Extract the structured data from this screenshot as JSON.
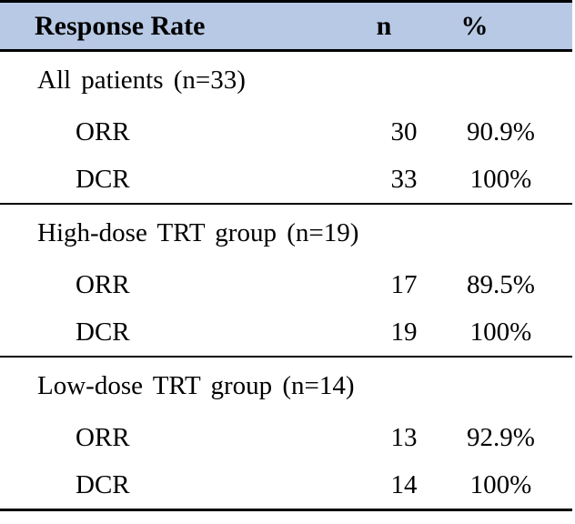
{
  "table": {
    "header": {
      "response_rate": "Response Rate",
      "n": "n",
      "pct": "%"
    },
    "colors": {
      "header_bg": "#b7c9e4",
      "border": "#000000",
      "text": "#000000"
    },
    "sections": [
      {
        "label": "All patients (n=33)",
        "rows": [
          {
            "label": "ORR",
            "n": "30",
            "pct": "90.9%"
          },
          {
            "label": "DCR",
            "n": "33",
            "pct": "100%"
          }
        ]
      },
      {
        "label": "High-dose TRT group (n=19)",
        "rows": [
          {
            "label": "ORR",
            "n": "17",
            "pct": "89.5%"
          },
          {
            "label": "DCR",
            "n": "19",
            "pct": "100%"
          }
        ]
      },
      {
        "label": "Low-dose TRT group (n=14)",
        "rows": [
          {
            "label": "ORR",
            "n": "13",
            "pct": "92.9%"
          },
          {
            "label": "DCR",
            "n": "14",
            "pct": "100%"
          }
        ]
      }
    ]
  }
}
